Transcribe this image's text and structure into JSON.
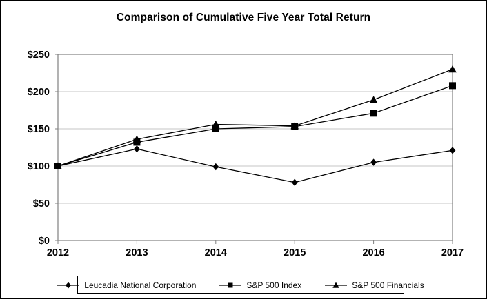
{
  "chart_data": {
    "type": "line",
    "title": "Comparison of Cumulative Five Year Total Return",
    "x": [
      2012,
      2013,
      2014,
      2015,
      2016,
      2017
    ],
    "x_tick_labels": [
      "2012",
      "2013",
      "2014",
      "2015",
      "2016",
      "2017"
    ],
    "y_ticks": [
      0,
      50,
      100,
      150,
      200,
      250
    ],
    "y_tick_labels": [
      "$0",
      "$50",
      "$100",
      "$150",
      "$200",
      "$250"
    ],
    "ylim": [
      0,
      250
    ],
    "grid": true,
    "legend_position": "bottom",
    "series": [
      {
        "name": "Leucadia National Corporation",
        "marker": "diamond",
        "values": [
          100,
          123,
          99,
          78,
          105,
          121
        ]
      },
      {
        "name": "S&P 500 Index",
        "marker": "square",
        "values": [
          100,
          132,
          150,
          153,
          171,
          208
        ]
      },
      {
        "name": "S&P 500 Financials",
        "marker": "triangle",
        "values": [
          100,
          136,
          156,
          154,
          189,
          230
        ]
      }
    ],
    "colors": {
      "series_line": "#000000",
      "marker_fill": "#000000",
      "gridline": "#c6c6c6",
      "plot_frame": "#808080",
      "tick": "#808080",
      "text": "#000000",
      "background": "#ffffff",
      "outer_border": "#000000"
    }
  }
}
